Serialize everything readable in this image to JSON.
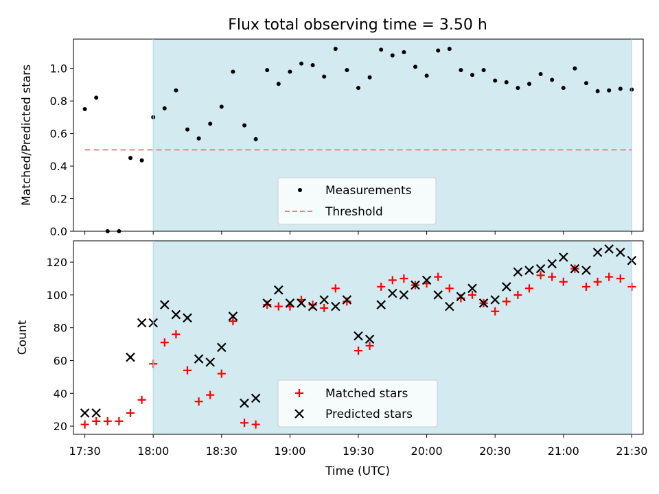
{
  "chart_data": [
    {
      "type": "scatter",
      "title": "Flux total observing time = 3.50 h",
      "xlabel": "",
      "ylabel": "Matched/Predicted stars",
      "xlim_min": [
        1045,
        1295
      ],
      "ylim": [
        0,
        1.18
      ],
      "yticks": [
        0.0,
        0.2,
        0.4,
        0.6,
        0.8,
        1.0
      ],
      "ytick_labels": [
        "0.0",
        "0.2",
        "0.4",
        "0.6",
        "0.8",
        "1.0"
      ],
      "shaded_region_min": [
        1080,
        1290
      ],
      "shaded_color": "#d3eaf0",
      "legend_loc": "lower center",
      "series": [
        {
          "name": "Measurements",
          "marker": "dot",
          "color": "#000000",
          "x_min": [
            1050,
            1055,
            1060,
            1065,
            1070,
            1075,
            1080,
            1085,
            1090,
            1095,
            1100,
            1105,
            1110,
            1115,
            1120,
            1125,
            1130,
            1135,
            1140,
            1145,
            1150,
            1155,
            1160,
            1165,
            1170,
            1175,
            1180,
            1185,
            1190,
            1195,
            1200,
            1205,
            1210,
            1215,
            1220,
            1225,
            1230,
            1235,
            1240,
            1245,
            1250,
            1255,
            1260,
            1265,
            1270,
            1275,
            1280,
            1285,
            1290
          ],
          "y": [
            0.75,
            0.82,
            0.0,
            0.0,
            0.45,
            0.435,
            0.7,
            0.755,
            0.865,
            0.625,
            0.57,
            0.66,
            0.765,
            0.98,
            0.65,
            0.565,
            0.99,
            0.905,
            0.98,
            1.03,
            1.02,
            0.95,
            1.12,
            0.99,
            0.88,
            0.945,
            1.115,
            1.08,
            1.1,
            1.01,
            0.955,
            1.11,
            1.12,
            0.99,
            0.96,
            0.99,
            0.925,
            0.915,
            0.88,
            0.905,
            0.965,
            0.93,
            0.88,
            1.0,
            0.91,
            0.86,
            0.865,
            0.875,
            0.87
          ]
        },
        {
          "name": "Threshold",
          "marker": "dashed-line",
          "color": "#f08080",
          "x_min": [
            1050,
            1290
          ],
          "y": [
            0.5,
            0.5
          ]
        }
      ]
    },
    {
      "type": "scatter",
      "title": "",
      "xlabel": "Time (UTC)",
      "ylabel": "Count",
      "xlim_min": [
        1045,
        1295
      ],
      "ylim": [
        15,
        133
      ],
      "yticks": [
        20,
        40,
        60,
        80,
        100,
        120
      ],
      "ytick_labels": [
        "20",
        "40",
        "60",
        "80",
        "100",
        "120"
      ],
      "xticks_min": [
        1050,
        1080,
        1110,
        1140,
        1170,
        1200,
        1230,
        1260,
        1290
      ],
      "xtick_labels": [
        "17:30",
        "18:00",
        "18:30",
        "19:00",
        "19:30",
        "20:00",
        "20:30",
        "21:00",
        "21:30"
      ],
      "shaded_region_min": [
        1080,
        1290
      ],
      "shaded_color": "#d3eaf0",
      "legend_loc": "lower center",
      "series": [
        {
          "name": "Matched stars",
          "marker": "+",
          "color": "#ff0000",
          "x_min": [
            1050,
            1055,
            1060,
            1065,
            1070,
            1075,
            1080,
            1085,
            1090,
            1095,
            1100,
            1105,
            1110,
            1115,
            1120,
            1125,
            1130,
            1135,
            1140,
            1145,
            1150,
            1155,
            1160,
            1165,
            1170,
            1175,
            1180,
            1185,
            1190,
            1195,
            1200,
            1205,
            1210,
            1215,
            1220,
            1225,
            1230,
            1235,
            1240,
            1245,
            1250,
            1255,
            1260,
            1265,
            1270,
            1275,
            1280,
            1285,
            1290
          ],
          "y": [
            21,
            23,
            23,
            23,
            28,
            36,
            58,
            71,
            76,
            54,
            35,
            39,
            52,
            84,
            22,
            21,
            94,
            93,
            93,
            97,
            94,
            92,
            104,
            96,
            66,
            69,
            105,
            109,
            110,
            106,
            107,
            111,
            104,
            98,
            100,
            95,
            90,
            96,
            100,
            104,
            112,
            111,
            108,
            116,
            105,
            108,
            111,
            110,
            105
          ]
        },
        {
          "name": "Predicted stars",
          "marker": "x",
          "color": "#000000",
          "x_min": [
            1050,
            1055,
            1070,
            1075,
            1080,
            1085,
            1090,
            1095,
            1100,
            1105,
            1110,
            1115,
            1120,
            1125,
            1130,
            1135,
            1140,
            1145,
            1150,
            1155,
            1160,
            1165,
            1170,
            1175,
            1180,
            1185,
            1190,
            1195,
            1200,
            1205,
            1210,
            1215,
            1220,
            1225,
            1230,
            1235,
            1240,
            1245,
            1250,
            1255,
            1260,
            1265,
            1270,
            1275,
            1280,
            1285,
            1290
          ],
          "y": [
            28,
            28,
            62,
            83,
            83,
            94,
            88,
            86,
            61,
            59,
            68,
            87,
            34,
            37,
            95,
            103,
            95,
            95,
            93,
            97,
            93,
            97,
            75,
            73,
            94,
            101,
            100,
            106,
            109,
            100,
            93,
            99,
            104,
            95,
            97,
            105,
            114,
            115,
            116,
            119,
            123,
            116,
            115,
            126,
            128,
            126,
            121
          ]
        }
      ]
    }
  ]
}
